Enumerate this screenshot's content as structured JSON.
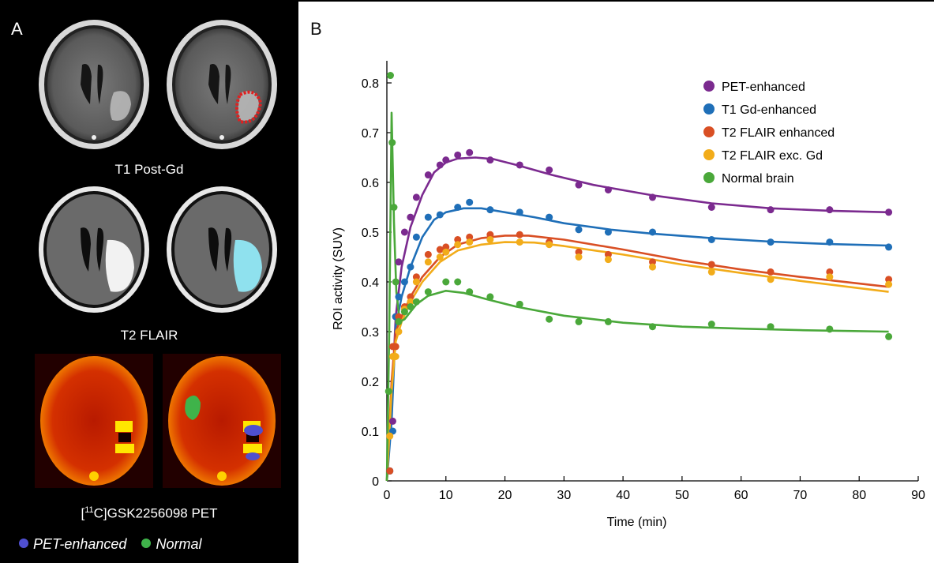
{
  "panel_a": {
    "letter": "A",
    "captions": {
      "t1": "T1 Post-Gd",
      "t2": "T2 FLAIR",
      "pet_prefix": "[",
      "pet_super": "11",
      "pet_suffix": "C]GSK2256098 PET"
    },
    "legend": [
      {
        "label": "PET-enhanced",
        "color": "#4f4fd0"
      },
      {
        "label": "Normal",
        "color": "#3fb34a"
      }
    ]
  },
  "panel_b": {
    "letter": "B"
  },
  "chart_data": {
    "type": "line",
    "xlabel": "Time (min)",
    "ylabel": "ROI activity (SUV)",
    "xlim": [
      0,
      90
    ],
    "ylim": [
      0,
      0.85
    ],
    "xticks": [
      0,
      10,
      20,
      30,
      40,
      50,
      60,
      70,
      80,
      90
    ],
    "yticks": [
      0,
      0.1,
      0.2,
      0.3,
      0.4,
      0.5,
      0.6,
      0.7,
      0.8
    ],
    "legend_placement": "top-right",
    "series": [
      {
        "name": "PET-enhanced",
        "color": "#7b2a8f",
        "points": [
          [
            0.5,
            0.02
          ],
          [
            1,
            0.12
          ],
          [
            1.5,
            0.33
          ],
          [
            2,
            0.44
          ],
          [
            3,
            0.5
          ],
          [
            4,
            0.53
          ],
          [
            5,
            0.57
          ],
          [
            7,
            0.615
          ],
          [
            9,
            0.635
          ],
          [
            10,
            0.645
          ],
          [
            12,
            0.655
          ],
          [
            14,
            0.66
          ],
          [
            17.5,
            0.645
          ],
          [
            22.5,
            0.635
          ],
          [
            27.5,
            0.625
          ],
          [
            32.5,
            0.595
          ],
          [
            37.5,
            0.585
          ],
          [
            45,
            0.57
          ],
          [
            55,
            0.55
          ],
          [
            65,
            0.545
          ],
          [
            75,
            0.545
          ],
          [
            85,
            0.54
          ]
        ],
        "fit": [
          [
            0,
            0
          ],
          [
            0.8,
            0.15
          ],
          [
            1.5,
            0.33
          ],
          [
            2.5,
            0.43
          ],
          [
            4,
            0.51
          ],
          [
            6,
            0.575
          ],
          [
            8,
            0.62
          ],
          [
            10,
            0.64
          ],
          [
            12,
            0.648
          ],
          [
            15,
            0.65
          ],
          [
            18,
            0.647
          ],
          [
            22,
            0.635
          ],
          [
            28,
            0.615
          ],
          [
            35,
            0.595
          ],
          [
            45,
            0.574
          ],
          [
            55,
            0.558
          ],
          [
            65,
            0.548
          ],
          [
            75,
            0.543
          ],
          [
            85,
            0.54
          ]
        ]
      },
      {
        "name": "T1 Gd-enhanced",
        "color": "#1f6fb8",
        "points": [
          [
            0.5,
            0.02
          ],
          [
            1,
            0.1
          ],
          [
            1.5,
            0.33
          ],
          [
            2,
            0.37
          ],
          [
            3,
            0.4
          ],
          [
            4,
            0.43
          ],
          [
            5,
            0.49
          ],
          [
            7,
            0.53
          ],
          [
            9,
            0.535
          ],
          [
            12,
            0.55
          ],
          [
            14,
            0.56
          ],
          [
            17.5,
            0.545
          ],
          [
            22.5,
            0.54
          ],
          [
            27.5,
            0.53
          ],
          [
            32.5,
            0.505
          ],
          [
            37.5,
            0.5
          ],
          [
            45,
            0.5
          ],
          [
            55,
            0.485
          ],
          [
            65,
            0.48
          ],
          [
            75,
            0.48
          ],
          [
            85,
            0.47
          ]
        ],
        "fit": [
          [
            0,
            0
          ],
          [
            0.8,
            0.12
          ],
          [
            1.5,
            0.31
          ],
          [
            2.5,
            0.37
          ],
          [
            4,
            0.43
          ],
          [
            6,
            0.49
          ],
          [
            8,
            0.525
          ],
          [
            10,
            0.54
          ],
          [
            13,
            0.548
          ],
          [
            16,
            0.548
          ],
          [
            20,
            0.54
          ],
          [
            25,
            0.53
          ],
          [
            30,
            0.518
          ],
          [
            38,
            0.505
          ],
          [
            45,
            0.497
          ],
          [
            55,
            0.488
          ],
          [
            65,
            0.481
          ],
          [
            75,
            0.476
          ],
          [
            85,
            0.473
          ]
        ]
      },
      {
        "name": "T2 FLAIR enhanced",
        "color": "#d94f24",
        "points": [
          [
            0.5,
            0.02
          ],
          [
            1,
            0.27
          ],
          [
            1.5,
            0.27
          ],
          [
            2,
            0.33
          ],
          [
            3,
            0.35
          ],
          [
            4,
            0.37
          ],
          [
            5,
            0.41
          ],
          [
            7,
            0.455
          ],
          [
            9,
            0.465
          ],
          [
            10,
            0.47
          ],
          [
            12,
            0.485
          ],
          [
            14,
            0.49
          ],
          [
            17.5,
            0.495
          ],
          [
            22.5,
            0.495
          ],
          [
            27.5,
            0.48
          ],
          [
            32.5,
            0.46
          ],
          [
            37.5,
            0.455
          ],
          [
            45,
            0.44
          ],
          [
            55,
            0.435
          ],
          [
            65,
            0.42
          ],
          [
            75,
            0.42
          ],
          [
            85,
            0.405
          ]
        ],
        "fit": [
          [
            0,
            0
          ],
          [
            0.8,
            0.2
          ],
          [
            1.5,
            0.3
          ],
          [
            2.5,
            0.33
          ],
          [
            4,
            0.37
          ],
          [
            6,
            0.41
          ],
          [
            9,
            0.45
          ],
          [
            12,
            0.475
          ],
          [
            16,
            0.488
          ],
          [
            20,
            0.493
          ],
          [
            24,
            0.493
          ],
          [
            30,
            0.485
          ],
          [
            40,
            0.465
          ],
          [
            50,
            0.443
          ],
          [
            60,
            0.425
          ],
          [
            70,
            0.41
          ],
          [
            85,
            0.39
          ]
        ]
      },
      {
        "name": "T2 FLAIR exc. Gd",
        "color": "#f2ac1a",
        "points": [
          [
            0.5,
            0.09
          ],
          [
            1,
            0.25
          ],
          [
            1.5,
            0.25
          ],
          [
            2,
            0.3
          ],
          [
            3,
            0.345
          ],
          [
            4,
            0.36
          ],
          [
            5,
            0.4
          ],
          [
            7,
            0.44
          ],
          [
            9,
            0.45
          ],
          [
            10,
            0.46
          ],
          [
            12,
            0.475
          ],
          [
            14,
            0.48
          ],
          [
            17.5,
            0.485
          ],
          [
            22.5,
            0.48
          ],
          [
            27.5,
            0.475
          ],
          [
            32.5,
            0.45
          ],
          [
            37.5,
            0.445
          ],
          [
            45,
            0.43
          ],
          [
            55,
            0.42
          ],
          [
            65,
            0.405
          ],
          [
            75,
            0.41
          ],
          [
            85,
            0.395
          ]
        ],
        "fit": [
          [
            0,
            0
          ],
          [
            0.8,
            0.18
          ],
          [
            1.5,
            0.28
          ],
          [
            2.5,
            0.32
          ],
          [
            4,
            0.36
          ],
          [
            6,
            0.4
          ],
          [
            9,
            0.44
          ],
          [
            12,
            0.463
          ],
          [
            16,
            0.475
          ],
          [
            20,
            0.48
          ],
          [
            25,
            0.479
          ],
          [
            30,
            0.472
          ],
          [
            40,
            0.455
          ],
          [
            50,
            0.435
          ],
          [
            60,
            0.418
          ],
          [
            70,
            0.402
          ],
          [
            85,
            0.38
          ]
        ]
      },
      {
        "name": "Normal brain",
        "color": "#4aa83a",
        "points": [
          [
            0.3,
            0.18
          ],
          [
            0.6,
            0.815
          ],
          [
            0.9,
            0.68
          ],
          [
            1.2,
            0.55
          ],
          [
            1.5,
            0.4
          ],
          [
            2,
            0.32
          ],
          [
            3,
            0.34
          ],
          [
            4,
            0.35
          ],
          [
            5,
            0.36
          ],
          [
            7,
            0.38
          ],
          [
            10,
            0.4
          ],
          [
            12,
            0.4
          ],
          [
            14,
            0.38
          ],
          [
            17.5,
            0.37
          ],
          [
            22.5,
            0.355
          ],
          [
            27.5,
            0.325
          ],
          [
            32.5,
            0.32
          ],
          [
            37.5,
            0.32
          ],
          [
            45,
            0.31
          ],
          [
            55,
            0.315
          ],
          [
            65,
            0.31
          ],
          [
            75,
            0.305
          ],
          [
            85,
            0.29
          ]
        ],
        "fit": [
          [
            0,
            0
          ],
          [
            0.4,
            0.3
          ],
          [
            0.8,
            0.74
          ],
          [
            1.2,
            0.52
          ],
          [
            1.6,
            0.38
          ],
          [
            2.2,
            0.32
          ],
          [
            3,
            0.325
          ],
          [
            5,
            0.355
          ],
          [
            7,
            0.372
          ],
          [
            10,
            0.382
          ],
          [
            13,
            0.378
          ],
          [
            17,
            0.365
          ],
          [
            22,
            0.35
          ],
          [
            30,
            0.332
          ],
          [
            40,
            0.318
          ],
          [
            50,
            0.31
          ],
          [
            60,
            0.306
          ],
          [
            70,
            0.303
          ],
          [
            85,
            0.3
          ]
        ]
      }
    ]
  }
}
